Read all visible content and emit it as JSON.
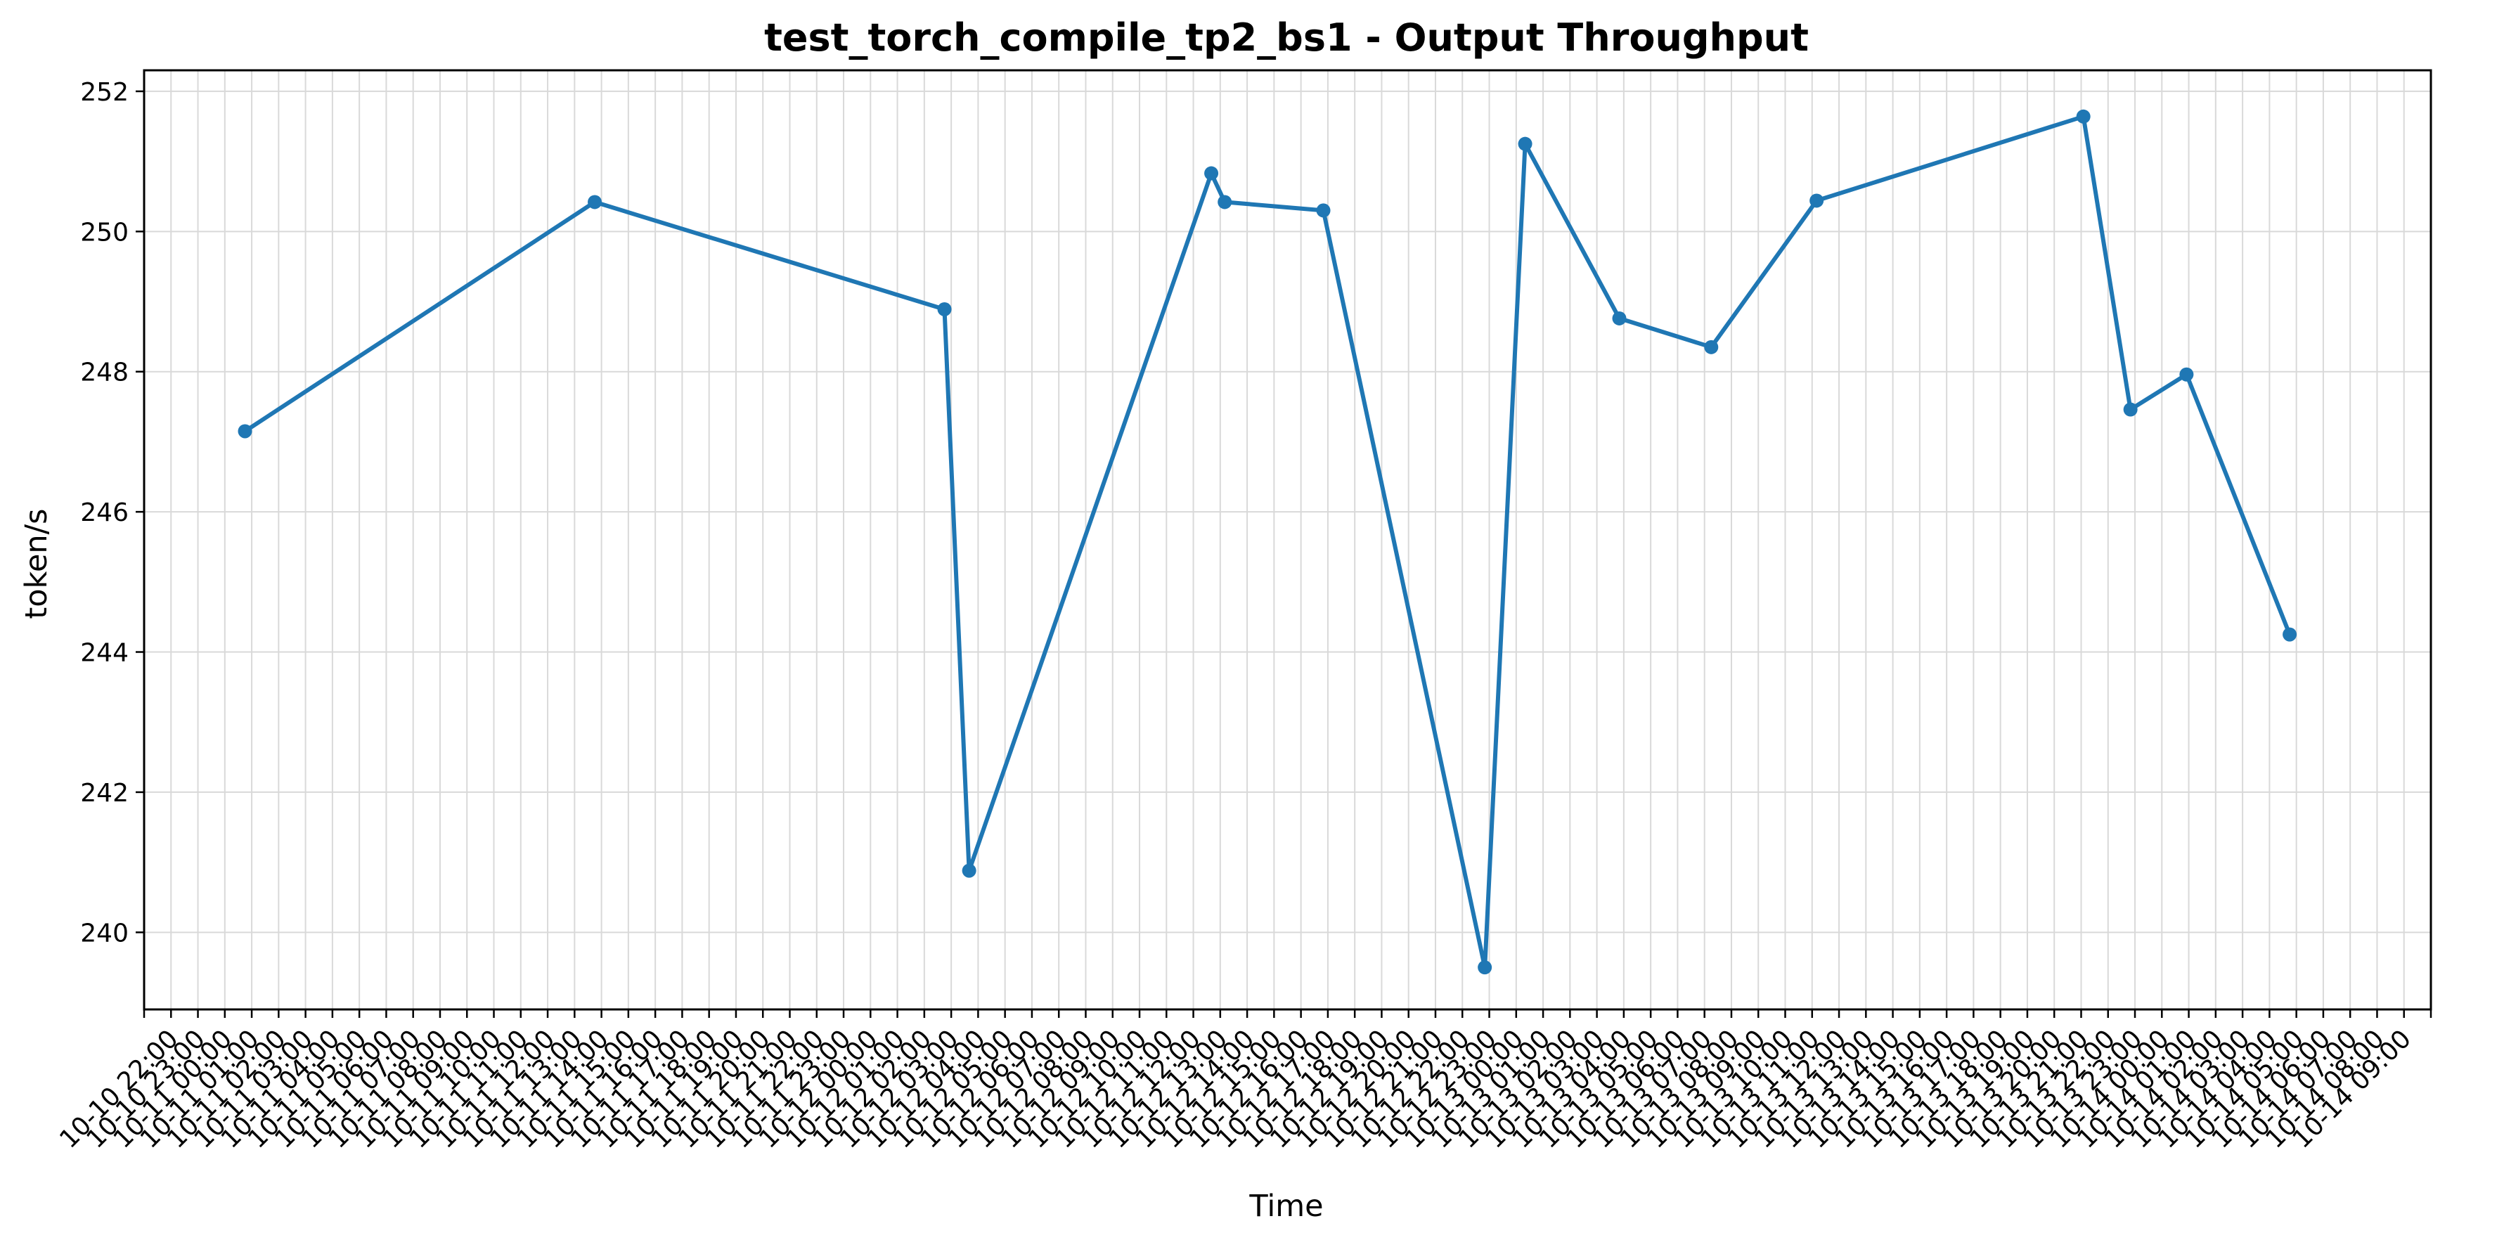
{
  "chart_data": {
    "type": "line",
    "title": "test_torch_compile_tp2_bs1 - Output Throughput",
    "xlabel": "Time",
    "ylabel": "token/s",
    "grid": true,
    "xlim": [
      "2025-10-10 21:00",
      "2025-10-14 10:00"
    ],
    "ylim": [
      238.9,
      252.3
    ],
    "yticks": [
      240,
      242,
      244,
      246,
      248,
      250,
      252
    ],
    "x_ticks": [
      "2025-10-10 21:00",
      "2025-10-10 22:00",
      "2025-10-10 23:00",
      "2025-10-11 00:00",
      "2025-10-11 01:00",
      "2025-10-11 02:00",
      "2025-10-11 03:00",
      "2025-10-11 04:00",
      "2025-10-11 05:00",
      "2025-10-11 06:00",
      "2025-10-11 07:00",
      "2025-10-11 08:00",
      "2025-10-11 09:00",
      "2025-10-11 10:00",
      "2025-10-11 11:00",
      "2025-10-11 12:00",
      "2025-10-11 13:00",
      "2025-10-11 14:00",
      "2025-10-11 15:00",
      "2025-10-11 16:00",
      "2025-10-11 17:00",
      "2025-10-11 18:00",
      "2025-10-11 19:00",
      "2025-10-11 20:00",
      "2025-10-11 21:00",
      "2025-10-11 22:00",
      "2025-10-11 23:00",
      "2025-10-12 00:00",
      "2025-10-12 01:00",
      "2025-10-12 02:00",
      "2025-10-12 03:00",
      "2025-10-12 04:00",
      "2025-10-12 05:00",
      "2025-10-12 06:00",
      "2025-10-12 07:00",
      "2025-10-12 08:00",
      "2025-10-12 09:00",
      "2025-10-12 10:00",
      "2025-10-12 11:00",
      "2025-10-12 12:00",
      "2025-10-12 13:00",
      "2025-10-12 14:00",
      "2025-10-12 15:00",
      "2025-10-12 16:00",
      "2025-10-12 17:00",
      "2025-10-12 18:00",
      "2025-10-12 19:00",
      "2025-10-12 20:00",
      "2025-10-12 21:00",
      "2025-10-12 22:00",
      "2025-10-12 23:00",
      "2025-10-13 00:00",
      "2025-10-13 01:00",
      "2025-10-13 02:00",
      "2025-10-13 03:00",
      "2025-10-13 04:00",
      "2025-10-13 05:00",
      "2025-10-13 06:00",
      "2025-10-13 07:00",
      "2025-10-13 08:00",
      "2025-10-13 09:00",
      "2025-10-13 10:00",
      "2025-10-13 11:00",
      "2025-10-13 12:00",
      "2025-10-13 13:00",
      "2025-10-13 14:00",
      "2025-10-13 15:00",
      "2025-10-13 16:00",
      "2025-10-13 17:00",
      "2025-10-13 18:00",
      "2025-10-13 19:00",
      "2025-10-13 20:00",
      "2025-10-13 21:00",
      "2025-10-13 22:00",
      "2025-10-13 23:00",
      "2025-10-14 00:00",
      "2025-10-14 01:00",
      "2025-10-14 02:00",
      "2025-10-14 03:00",
      "2025-10-14 04:00",
      "2025-10-14 05:00",
      "2025-10-14 06:00",
      "2025-10-14 07:00",
      "2025-10-14 08:00",
      "2025-10-14 09:00",
      "2025-10-14 10:00"
    ],
    "x_tick_labels": [
      "",
      "10-10 22:00",
      "10-10 23:00",
      "10-11 00:00",
      "10-11 01:00",
      "10-11 02:00",
      "10-11 03:00",
      "10-11 04:00",
      "10-11 05:00",
      "10-11 06:00",
      "10-11 07:00",
      "10-11 08:00",
      "10-11 09:00",
      "10-11 10:00",
      "10-11 11:00",
      "10-11 12:00",
      "10-11 13:00",
      "10-11 14:00",
      "10-11 15:00",
      "10-11 16:00",
      "10-11 17:00",
      "10-11 18:00",
      "10-11 19:00",
      "10-11 20:00",
      "10-11 21:00",
      "10-11 22:00",
      "10-11 23:00",
      "10-12 00:00",
      "10-12 01:00",
      "10-12 02:00",
      "10-12 03:00",
      "10-12 04:00",
      "10-12 05:00",
      "10-12 06:00",
      "10-12 07:00",
      "10-12 08:00",
      "10-12 09:00",
      "10-12 10:00",
      "10-12 11:00",
      "10-12 12:00",
      "10-12 13:00",
      "10-12 14:00",
      "10-12 15:00",
      "10-12 16:00",
      "10-12 17:00",
      "10-12 18:00",
      "10-12 19:00",
      "10-12 20:00",
      "10-12 21:00",
      "10-12 22:00",
      "10-12 23:00",
      "10-13 00:00",
      "10-13 01:00",
      "10-13 02:00",
      "10-13 03:00",
      "10-13 04:00",
      "10-13 05:00",
      "10-13 06:00",
      "10-13 07:00",
      "10-13 08:00",
      "10-13 09:00",
      "10-13 10:00",
      "10-13 11:00",
      "10-13 12:00",
      "10-13 13:00",
      "10-13 14:00",
      "10-13 15:00",
      "10-13 16:00",
      "10-13 17:00",
      "10-13 18:00",
      "10-13 19:00",
      "10-13 20:00",
      "10-13 21:00",
      "10-13 22:00",
      "10-13 23:00",
      "10-14 00:00",
      "10-14 01:00",
      "10-14 02:00",
      "10-14 03:00",
      "10-14 04:00",
      "10-14 05:00",
      "10-14 06:00",
      "10-14 07:00",
      "10-14 08:00",
      "10-14 09:00",
      ""
    ],
    "series": [
      {
        "color": "#1f77b4",
        "x": [
          "2025-10-11 00:45",
          "2025-10-11 13:45",
          "2025-10-12 02:45",
          "2025-10-12 03:40",
          "2025-10-12 12:40",
          "2025-10-12 13:10",
          "2025-10-12 16:50",
          "2025-10-12 22:50",
          "2025-10-13 00:20",
          "2025-10-13 03:50",
          "2025-10-13 07:15",
          "2025-10-13 11:10",
          "2025-10-13 21:05",
          "2025-10-13 22:50",
          "2025-10-14 00:55",
          "2025-10-14 04:45"
        ],
        "y": [
          247.15,
          250.42,
          248.89,
          240.88,
          250.83,
          250.42,
          250.3,
          239.5,
          251.25,
          248.76,
          248.35,
          250.44,
          251.64,
          247.46,
          247.96,
          244.25
        ]
      }
    ]
  }
}
